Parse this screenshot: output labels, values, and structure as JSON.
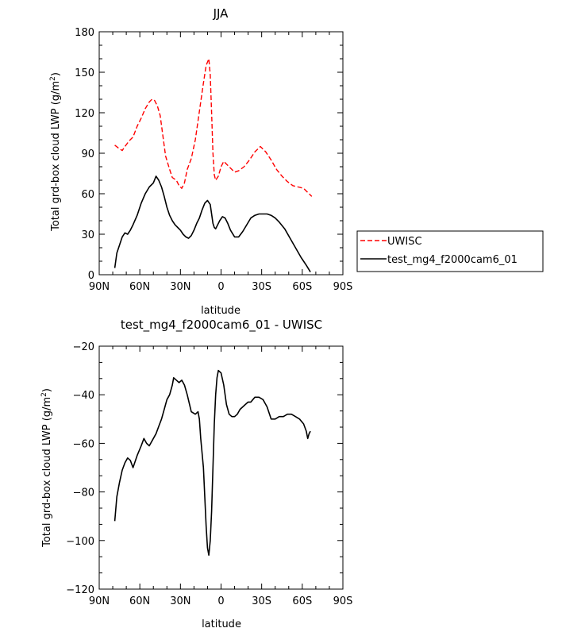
{
  "chart_data": [
    {
      "type": "line",
      "title": "JJA",
      "xlabel": "latitude",
      "ylabel": "Total grd-box cloud LWP (g/m",
      "ylabel_sup": "2",
      "ylabel_end": ")",
      "xlim": [
        90,
        -90
      ],
      "ylim": [
        0,
        180
      ],
      "xticks": [
        {
          "value": 90,
          "label": "90N"
        },
        {
          "value": 60,
          "label": "60N"
        },
        {
          "value": 30,
          "label": "30N"
        },
        {
          "value": 0,
          "label": "0"
        },
        {
          "value": -30,
          "label": "30S"
        },
        {
          "value": -60,
          "label": "60S"
        },
        {
          "value": -90,
          "label": "90S"
        }
      ],
      "yticks": [
        0,
        30,
        60,
        90,
        120,
        150,
        180
      ],
      "legend": {
        "placement": "right",
        "entries": [
          "UWISC",
          "test_mg4_f2000cam6_01"
        ]
      },
      "series": [
        {
          "name": "UWISC",
          "color": "#ff0000",
          "dash": "dashed",
          "x": [
            78.5,
            76,
            73,
            71,
            68,
            65,
            62,
            59,
            56,
            53,
            51,
            49,
            47,
            45,
            43,
            41,
            38,
            36,
            33,
            31,
            29,
            27,
            25,
            22,
            19,
            17,
            15,
            13,
            11,
            9,
            8,
            7,
            6,
            5,
            4,
            2,
            0,
            -2,
            -4,
            -6,
            -8,
            -10,
            -13,
            -17,
            -21,
            -25,
            -29,
            -33,
            -37,
            -41,
            -45,
            -49,
            -53,
            -57,
            -61,
            -63,
            -65,
            -67
          ],
          "y": [
            96,
            94,
            92,
            95,
            99,
            102,
            110,
            116,
            123,
            128,
            130,
            129,
            125,
            118,
            103,
            88,
            78,
            72,
            70,
            66,
            64,
            68,
            78,
            86,
            100,
            114,
            128,
            142,
            155,
            160,
            148,
            120,
            90,
            74,
            70,
            73,
            80,
            84,
            82,
            80,
            78,
            76,
            77,
            80,
            85,
            91,
            95,
            91,
            85,
            78,
            73,
            69,
            66,
            65,
            64,
            62,
            60,
            58
          ]
        },
        {
          "name": "test_mg4_f2000cam6_01",
          "color": "#000000",
          "dash": "solid",
          "x": [
            78.5,
            77,
            75,
            73,
            71,
            69,
            67,
            65,
            62,
            59,
            56,
            53,
            50,
            48,
            46,
            44,
            42,
            40,
            38,
            36,
            34,
            32,
            30,
            28,
            26,
            24,
            22,
            20,
            18,
            16,
            14,
            12,
            10,
            8,
            7,
            6,
            5,
            4,
            3,
            1,
            -1,
            -3,
            -5,
            -7,
            -10,
            -13,
            -16,
            -19,
            -22,
            -25,
            -28,
            -31,
            -34,
            -37,
            -40,
            -43,
            -47,
            -51,
            -55,
            -59,
            -63,
            -66
          ],
          "y": [
            5,
            16,
            22,
            28,
            31,
            30,
            33,
            37,
            44,
            53,
            60,
            65,
            68,
            73,
            70,
            65,
            58,
            50,
            44,
            40,
            37,
            35,
            33,
            30,
            28,
            27,
            29,
            33,
            38,
            42,
            48,
            53,
            55,
            52,
            45,
            38,
            35,
            34,
            36,
            40,
            43,
            42,
            38,
            33,
            28,
            28,
            32,
            37,
            42,
            44,
            45,
            45,
            45,
            44,
            42,
            39,
            34,
            27,
            20,
            13,
            7,
            2
          ]
        }
      ]
    },
    {
      "type": "line",
      "title": "test_mg4_f2000cam6_01 - UWISC",
      "xlabel": "latitude",
      "ylabel": "Total grd-box cloud LWP (g/m",
      "ylabel_sup": "2",
      "ylabel_end": ")",
      "xlim": [
        90,
        -90
      ],
      "ylim": [
        -120,
        -20
      ],
      "xticks": [
        {
          "value": 90,
          "label": "90N"
        },
        {
          "value": 60,
          "label": "60N"
        },
        {
          "value": 30,
          "label": "30N"
        },
        {
          "value": 0,
          "label": "0"
        },
        {
          "value": -30,
          "label": "30S"
        },
        {
          "value": -60,
          "label": "60S"
        },
        {
          "value": -90,
          "label": "90S"
        }
      ],
      "yticks": [
        -120,
        -100,
        -80,
        -60,
        -40,
        -20
      ],
      "series": [
        {
          "color": "#000000",
          "dash": "solid",
          "x": [
            78.5,
            77,
            75,
            73,
            71,
            69,
            67,
            65,
            62,
            59,
            57,
            55,
            53,
            50,
            48,
            46,
            44,
            42,
            40,
            38,
            36,
            35,
            33,
            31,
            29,
            27,
            25,
            22,
            19,
            17,
            16,
            15,
            13,
            12,
            11,
            10,
            9,
            8,
            7,
            6,
            5,
            4,
            3,
            2,
            0,
            -2,
            -4,
            -6,
            -8,
            -10,
            -12,
            -14,
            -16,
            -18,
            -20,
            -22,
            -25,
            -28,
            -31,
            -34,
            -37,
            -40,
            -43,
            -46,
            -49,
            -52,
            -55,
            -58,
            -61,
            -63,
            -64,
            -65,
            -66
          ],
          "y": [
            -92,
            -82,
            -76,
            -71,
            -68,
            -66,
            -67,
            -70,
            -65,
            -61,
            -58,
            -60,
            -61,
            -58,
            -56,
            -53,
            -50,
            -46,
            -42,
            -40,
            -36,
            -33,
            -34,
            -35,
            -34,
            -36,
            -40,
            -47,
            -48,
            -47,
            -50,
            -58,
            -70,
            -82,
            -94,
            -103,
            -106,
            -100,
            -88,
            -70,
            -52,
            -40,
            -33,
            -30,
            -31,
            -36,
            -44,
            -48,
            -49,
            -49,
            -48,
            -46,
            -45,
            -44,
            -43,
            -43,
            -41,
            -41,
            -42,
            -45,
            -50,
            -50,
            -49,
            -49,
            -48,
            -48,
            -49,
            -50,
            -52,
            -55,
            -58,
            -56,
            -55
          ]
        }
      ]
    }
  ]
}
